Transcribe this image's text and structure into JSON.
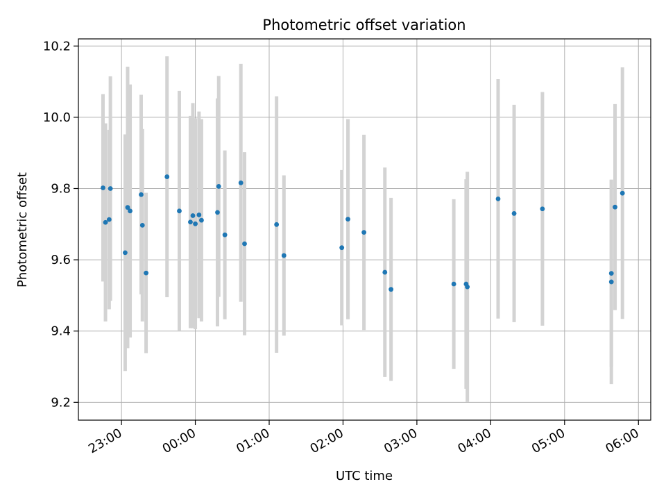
{
  "chart_data": {
    "type": "scatter",
    "title": "Photometric offset variation",
    "xlabel": "UTC time",
    "ylabel": "Photometric offset",
    "grid": true,
    "x_axis": {
      "start": "22:25",
      "end": "06:10"
    },
    "ylim": [
      9.15,
      10.22
    ],
    "x_ticks": [
      "23:00",
      "00:00",
      "01:00",
      "02:00",
      "03:00",
      "04:00",
      "05:00",
      "06:00"
    ],
    "y_ticks": [
      "9.2",
      "9.4",
      "9.6",
      "9.8",
      "10.0",
      "10.2"
    ],
    "marker_color": "#1f77b4",
    "errorbar_color": "#d3d3d3",
    "points": [
      {
        "x": "22:45",
        "y": 9.802,
        "err": 0.263
      },
      {
        "x": "22:47",
        "y": 9.705,
        "err": 0.278
      },
      {
        "x": "22:50",
        "y": 9.713,
        "err": 0.252
      },
      {
        "x": "22:51",
        "y": 9.8,
        "err": 0.315
      },
      {
        "x": "23:03",
        "y": 9.62,
        "err": 0.332
      },
      {
        "x": "23:05",
        "y": 9.747,
        "err": 0.395
      },
      {
        "x": "23:07",
        "y": 9.737,
        "err": 0.355
      },
      {
        "x": "23:16",
        "y": 9.783,
        "err": 0.28
      },
      {
        "x": "23:17",
        "y": 9.697,
        "err": 0.27
      },
      {
        "x": "23:20",
        "y": 9.563,
        "err": 0.225
      },
      {
        "x": "23:37",
        "y": 9.833,
        "err": 0.338
      },
      {
        "x": "23:47",
        "y": 9.737,
        "err": 0.337
      },
      {
        "x": "23:56",
        "y": 9.706,
        "err": 0.298
      },
      {
        "x": "23:58",
        "y": 9.724,
        "err": 0.316
      },
      {
        "x": "00:00",
        "y": 9.701,
        "err": 0.296
      },
      {
        "x": "00:03",
        "y": 9.726,
        "err": 0.29
      },
      {
        "x": "00:05",
        "y": 9.711,
        "err": 0.284
      },
      {
        "x": "00:18",
        "y": 9.733,
        "err": 0.32
      },
      {
        "x": "00:19",
        "y": 9.806,
        "err": 0.31
      },
      {
        "x": "00:24",
        "y": 9.67,
        "err": 0.237
      },
      {
        "x": "00:37",
        "y": 9.816,
        "err": 0.334
      },
      {
        "x": "00:40",
        "y": 9.645,
        "err": 0.257
      },
      {
        "x": "01:06",
        "y": 9.699,
        "err": 0.36
      },
      {
        "x": "01:12",
        "y": 9.612,
        "err": 0.225
      },
      {
        "x": "01:59",
        "y": 9.634,
        "err": 0.218
      },
      {
        "x": "02:04",
        "y": 9.714,
        "err": 0.281
      },
      {
        "x": "02:17",
        "y": 9.677,
        "err": 0.274
      },
      {
        "x": "02:34",
        "y": 9.565,
        "err": 0.294
      },
      {
        "x": "02:39",
        "y": 9.517,
        "err": 0.257
      },
      {
        "x": "03:30",
        "y": 9.532,
        "err": 0.238
      },
      {
        "x": "03:40",
        "y": 9.532,
        "err": 0.294
      },
      {
        "x": "03:41",
        "y": 9.524,
        "err": 0.323
      },
      {
        "x": "04:06",
        "y": 9.771,
        "err": 0.336
      },
      {
        "x": "04:19",
        "y": 9.73,
        "err": 0.305
      },
      {
        "x": "04:42",
        "y": 9.743,
        "err": 0.328
      },
      {
        "x": "05:38",
        "y": 9.562,
        "err": 0.262
      },
      {
        "x": "05:38",
        "y": 9.538,
        "err": 0.287
      },
      {
        "x": "05:41",
        "y": 9.748,
        "err": 0.289
      },
      {
        "x": "05:47",
        "y": 9.787,
        "err": 0.353
      }
    ]
  }
}
